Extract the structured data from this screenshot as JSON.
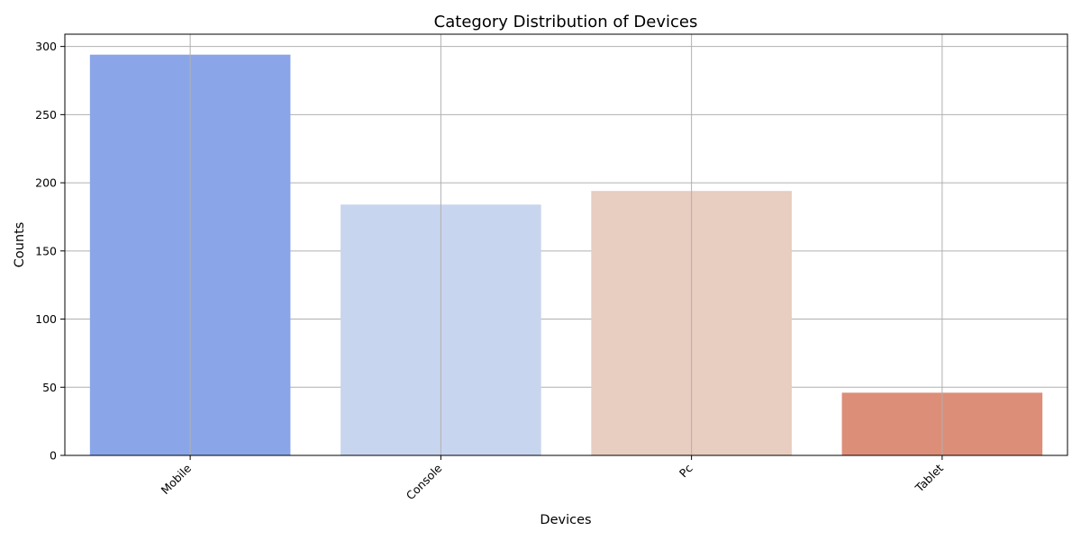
{
  "chart_data": {
    "type": "bar",
    "title": "Category Distribution of Devices",
    "xlabel": "Devices",
    "ylabel": "Counts",
    "categories": [
      "Mobile",
      "Console",
      "Pc",
      "Tablet"
    ],
    "values": [
      294,
      184,
      194,
      46
    ],
    "colors": [
      "#8aa6e9",
      "#c8d5ef",
      "#e8cdc1",
      "#dc8e78"
    ],
    "ylim": [
      0,
      309
    ],
    "yticks": [
      0,
      50,
      100,
      150,
      200,
      250,
      300
    ],
    "grid": true,
    "legend": "none"
  }
}
